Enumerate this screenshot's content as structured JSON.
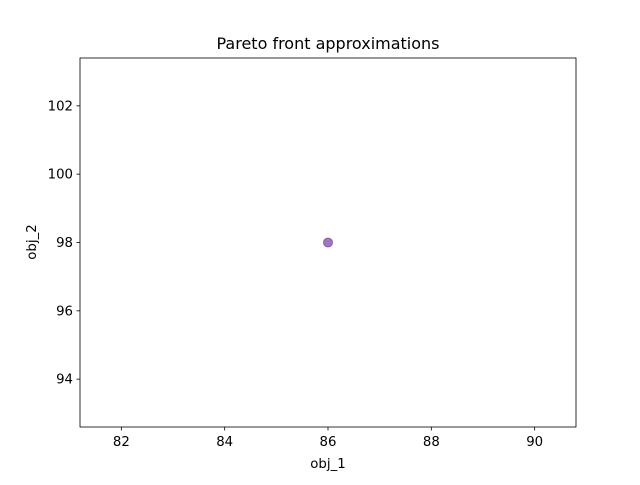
{
  "chart_data": {
    "type": "scatter",
    "title": "Pareto front approximations",
    "xlabel": "obj_1",
    "ylabel": "obj_2",
    "xlim": [
      81.2,
      90.8
    ],
    "ylim": [
      92.6,
      103.4
    ],
    "xticks": [
      82,
      84,
      86,
      88,
      90
    ],
    "yticks": [
      94,
      96,
      98,
      100,
      102
    ],
    "grid": false,
    "series": [
      {
        "points": [
          {
            "x": 86,
            "y": 98
          }
        ],
        "color": "#9467bd"
      }
    ]
  }
}
